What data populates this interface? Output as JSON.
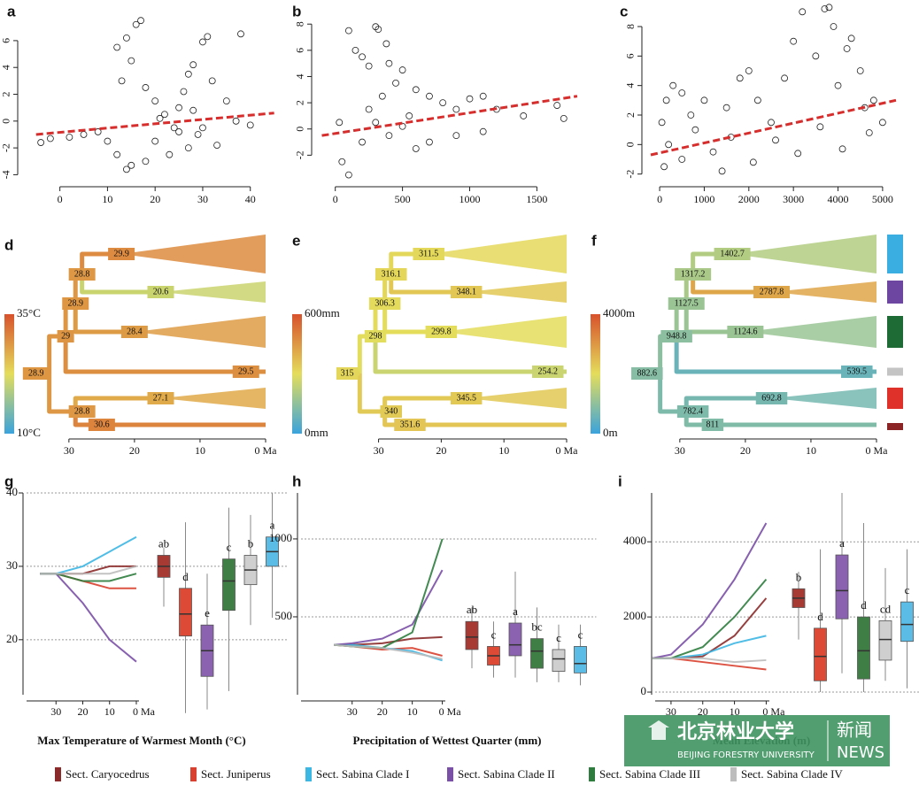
{
  "chart_data": [
    {
      "type": "scatter",
      "panel": "a",
      "xlim": [
        -7,
        46
      ],
      "ylim": [
        -4.5,
        8.7
      ],
      "xticks": [
        0,
        10,
        20,
        30,
        40
      ],
      "yticks": [
        -4,
        -2,
        0,
        2,
        4,
        6
      ],
      "x": [
        12,
        14,
        16,
        17,
        15,
        13,
        18,
        20,
        22,
        24,
        25,
        26,
        27,
        28,
        30,
        31,
        32,
        29,
        27,
        23,
        20,
        18,
        15,
        14,
        12,
        10,
        8,
        5,
        2,
        -4,
        -2,
        35,
        37,
        40,
        38,
        33,
        25,
        21,
        28,
        30
      ],
      "y": [
        5.5,
        6.2,
        7.2,
        7.5,
        4.5,
        3.0,
        2.5,
        1.5,
        0.5,
        -0.5,
        1.0,
        2.2,
        3.5,
        4.2,
        5.9,
        6.3,
        3.0,
        -1,
        -2,
        -2.5,
        -1.5,
        -3.0,
        -3.3,
        -3.6,
        -2.5,
        -1.5,
        -0.8,
        -1,
        -1.2,
        -1.6,
        -1.3,
        1.5,
        0,
        -0.3,
        6.5,
        -1.8,
        -0.8,
        0.2,
        0.8,
        -0.5
      ],
      "trend": {
        "x": [
          -5,
          45
        ],
        "y": [
          -1,
          0.6
        ],
        "color": "#d62d2d"
      }
    },
    {
      "type": "scatter",
      "panel": "b",
      "xlim": [
        -110,
        1820
      ],
      "ylim": [
        -4,
        9.5
      ],
      "xticks": [
        0,
        500,
        1000,
        1500
      ],
      "yticks": [
        -2,
        0,
        2,
        4,
        6,
        8
      ],
      "x": [
        100,
        300,
        320,
        200,
        250,
        150,
        400,
        380,
        500,
        450,
        600,
        700,
        800,
        900,
        1000,
        1100,
        1200,
        1400,
        1650,
        1700,
        50,
        100,
        200,
        300,
        400,
        500,
        600,
        700,
        900,
        1100,
        30,
        250,
        350,
        550
      ],
      "y": [
        7.5,
        7.8,
        7.6,
        5.5,
        4.8,
        6.0,
        5.0,
        6.5,
        4.5,
        3.5,
        3.0,
        2.5,
        2.0,
        1.5,
        2.3,
        2.5,
        1.5,
        1.0,
        1.8,
        0.8,
        -2.5,
        -3.5,
        -1.0,
        0.5,
        -0.5,
        0.2,
        -1.5,
        -1.0,
        -0.5,
        -0.2,
        0.5,
        1.5,
        2.5,
        1.0
      ],
      "trend": {
        "x": [
          -100,
          1800
        ],
        "y": [
          -0.5,
          2.5
        ],
        "color": "#d62d2d"
      }
    },
    {
      "type": "scatter",
      "panel": "c",
      "xlim": [
        -200,
        5300
      ],
      "ylim": [
        -2.5,
        9.5
      ],
      "xticks": [
        0,
        1000,
        2000,
        3000,
        4000,
        5000
      ],
      "yticks": [
        -2,
        0,
        2,
        4,
        6,
        8
      ],
      "x": [
        300,
        500,
        1000,
        1500,
        1800,
        2000,
        2200,
        2500,
        2800,
        3000,
        3200,
        3500,
        3700,
        3800,
        3900,
        4000,
        4200,
        4300,
        4500,
        4600,
        4800,
        5000,
        100,
        200,
        500,
        800,
        1200,
        1600,
        2100,
        2600,
        3100,
        3600,
        4100,
        4700,
        50,
        150,
        700,
        1400
      ],
      "y": [
        4.0,
        3.5,
        3.0,
        2.5,
        4.5,
        5.0,
        3.0,
        1.5,
        4.5,
        7.0,
        9.0,
        6.0,
        9.2,
        9.3,
        8.0,
        4.0,
        6.5,
        7.2,
        5.0,
        2.5,
        3.0,
        1.5,
        -1.5,
        0,
        -1.0,
        1.0,
        -0.5,
        0.5,
        -1.2,
        0.3,
        -0.6,
        1.2,
        -0.3,
        0.8,
        1.5,
        3,
        2,
        -1.8
      ],
      "trend": {
        "x": [
          -200,
          5300
        ],
        "y": [
          -0.7,
          3.0
        ],
        "color": "#d62d2d"
      }
    },
    {
      "type": "tree",
      "panel": "d",
      "xlim": [
        37,
        0
      ],
      "xticks": [
        30,
        20,
        10,
        {
          "value": 0,
          "label": "0 Ma"
        }
      ],
      "clim": [
        10,
        35
      ],
      "cticks": [
        {
          "value": 10,
          "label": "10°C"
        },
        {
          "value": 35,
          "label": "35°C"
        }
      ],
      "node_values": [
        29.9,
        28.8,
        20.6,
        28.9,
        28.4,
        29.0,
        29.5,
        28.9,
        27.1,
        28.8,
        30.6
      ]
    },
    {
      "type": "tree",
      "panel": "e",
      "xlim": [
        37,
        0
      ],
      "xticks": [
        30,
        20,
        10,
        {
          "value": 0,
          "label": "0 Ma"
        }
      ],
      "clim": [
        0,
        600
      ],
      "cticks": [
        {
          "value": 0,
          "label": "0mm"
        },
        {
          "value": 600,
          "label": "600mm"
        }
      ],
      "node_values": [
        311.5,
        316.1,
        348.1,
        306.3,
        299.8,
        298.0,
        254.2,
        315.0,
        345.5,
        340.0,
        351.6
      ]
    },
    {
      "type": "tree",
      "panel": "f",
      "xlim": [
        37,
        0
      ],
      "xticks": [
        30,
        20,
        10,
        {
          "value": 0,
          "label": "0 Ma"
        }
      ],
      "clim": [
        0,
        4000
      ],
      "cticks": [
        {
          "value": 0,
          "label": "0m"
        },
        {
          "value": 4000,
          "label": "4000m"
        }
      ],
      "node_values": [
        1402.7,
        1317.2,
        2787.8,
        1127.5,
        1124.6,
        948.8,
        539.5,
        882.6,
        692.8,
        782.4,
        811
      ],
      "clade_colors": [
        "#3aaee0",
        "#6c46a0",
        "#1f6b35",
        "#c4c4c4",
        "#e0302a",
        "#8b2525"
      ]
    },
    {
      "type": "box",
      "panel": "g",
      "title": "Max Temperature of Warmest Month (°C)",
      "xlim": [
        41,
        -1
      ],
      "xticks": [
        30,
        20,
        10,
        {
          "value": 0,
          "label": "0 Ma"
        }
      ],
      "ylim": [
        12.5,
        40
      ],
      "yticks": [
        20,
        30,
        40
      ],
      "x": [
        36,
        30,
        20,
        10,
        0
      ],
      "series": [
        {
          "color": "#8b2a2a",
          "values": [
            29,
            29,
            29,
            30,
            30
          ]
        },
        {
          "color": "#d9402f",
          "values": [
            29,
            29,
            28,
            27,
            27
          ]
        },
        {
          "color": "#3cb6e3",
          "values": [
            29,
            29,
            30,
            32,
            34
          ]
        },
        {
          "color": "#7a4fa6",
          "values": [
            29,
            29,
            25,
            20,
            17
          ]
        },
        {
          "color": "#2e7d3e",
          "values": [
            29,
            29,
            28,
            28,
            29
          ]
        },
        {
          "color": "#bdbdbd",
          "values": [
            29,
            29,
            29,
            29,
            30
          ]
        }
      ],
      "boxes": [
        {
          "label": "ab",
          "color": "#a83a34",
          "min": 24.5,
          "q1": 28.5,
          "median": 30,
          "q3": 31.5,
          "max": 32.5
        },
        {
          "label": "d",
          "color": "#dd4a35",
          "min": 10,
          "q1": 20.5,
          "median": 23.5,
          "q3": 27,
          "max": 36
        },
        {
          "label": "e",
          "color": "#8a62b0",
          "min": 10.5,
          "q1": 15,
          "median": 18.5,
          "q3": 22,
          "max": 29
        },
        {
          "label": "c",
          "color": "#3f7f45",
          "min": 13,
          "q1": 24,
          "median": 28,
          "q3": 31,
          "max": 38
        },
        {
          "label": "b",
          "color": "#cfcfcf",
          "min": 22,
          "q1": 27.5,
          "median": 29.5,
          "q3": 31.5,
          "max": 37
        },
        {
          "label": "a",
          "color": "#5bbce6",
          "min": 23,
          "q1": 30,
          "median": 32,
          "q3": 34,
          "max": 40
        }
      ]
    },
    {
      "type": "box",
      "panel": "h",
      "title": "Precipitation of Wettest Quarter (mm)",
      "xlim": [
        47,
        -1
      ],
      "xticks": [
        30,
        20,
        10,
        {
          "value": 0,
          "label": "0 Ma"
        }
      ],
      "ylim": [
        0,
        1295
      ],
      "yticks": [
        500,
        1000
      ],
      "x": [
        36,
        30,
        20,
        10,
        0
      ],
      "series": [
        {
          "color": "#8b2a2a",
          "values": [
            320,
            320,
            330,
            360,
            370
          ]
        },
        {
          "color": "#d9402f",
          "values": [
            320,
            310,
            290,
            300,
            250
          ]
        },
        {
          "color": "#3cb6e3",
          "values": [
            320,
            320,
            300,
            280,
            220
          ]
        },
        {
          "color": "#7a4fa6",
          "values": [
            320,
            330,
            360,
            450,
            800
          ]
        },
        {
          "color": "#2e7d3e",
          "values": [
            320,
            310,
            300,
            400,
            1000
          ]
        },
        {
          "color": "#bdbdbd",
          "values": [
            320,
            310,
            300,
            270,
            230
          ]
        }
      ],
      "boxes": [
        {
          "label": "ab",
          "color": "#a83a34",
          "min": 170,
          "q1": 290,
          "median": 370,
          "q3": 470,
          "max": 560
        },
        {
          "label": "c",
          "color": "#dd4a35",
          "min": 110,
          "q1": 190,
          "median": 250,
          "q3": 310,
          "max": 470
        },
        {
          "label": "a",
          "color": "#8a62b0",
          "min": 110,
          "q1": 250,
          "median": 320,
          "q3": 460,
          "max": 790
        },
        {
          "label": "bc",
          "color": "#3f7f45",
          "min": 80,
          "q1": 170,
          "median": 280,
          "q3": 360,
          "max": 560
        },
        {
          "label": "c",
          "color": "#cfcfcf",
          "min": 80,
          "q1": 150,
          "median": 230,
          "q3": 290,
          "max": 450
        },
        {
          "label": "c",
          "color": "#5bbce6",
          "min": 60,
          "q1": 140,
          "median": 200,
          "q3": 310,
          "max": 450
        }
      ]
    },
    {
      "type": "box",
      "panel": "i",
      "title": "Mean Elevation (m)",
      "xlim": [
        35,
        -1
      ],
      "xticks": [
        30,
        20,
        10,
        {
          "value": 0,
          "label": "0 Ma"
        }
      ],
      "ylim": [
        -70,
        5300
      ],
      "yticks": [
        0,
        2000,
        4000
      ],
      "x": [
        36,
        30,
        20,
        10,
        0
      ],
      "series": [
        {
          "color": "#8b2a2a",
          "values": [
            900,
            900,
            950,
            1500,
            2500
          ]
        },
        {
          "color": "#d9402f",
          "values": [
            900,
            900,
            800,
            700,
            600
          ]
        },
        {
          "color": "#3cb6e3",
          "values": [
            900,
            900,
            1000,
            1300,
            1500
          ]
        },
        {
          "color": "#7a4fa6",
          "values": [
            900,
            1000,
            1800,
            3000,
            4500
          ]
        },
        {
          "color": "#2e7d3e",
          "values": [
            900,
            900,
            1200,
            2000,
            3000
          ]
        },
        {
          "color": "#bdbdbd",
          "values": [
            900,
            900,
            900,
            800,
            850
          ]
        }
      ],
      "boxes": [
        {
          "label": "b",
          "color": "#a83a34",
          "min": 1400,
          "q1": 2250,
          "median": 2500,
          "q3": 2750,
          "max": 3200
        },
        {
          "label": "d",
          "color": "#dd4a35",
          "min": 0,
          "q1": 300,
          "median": 950,
          "q3": 1700,
          "max": 3800
        },
        {
          "label": "a",
          "color": "#8a62b0",
          "min": 500,
          "q1": 1950,
          "median": 2700,
          "q3": 3650,
          "max": 5300
        },
        {
          "label": "d",
          "color": "#3f7f45",
          "min": 0,
          "q1": 350,
          "median": 1100,
          "q3": 2000,
          "max": 4500
        },
        {
          "label": "cd",
          "color": "#cfcfcf",
          "min": 300,
          "q1": 850,
          "median": 1400,
          "q3": 1900,
          "max": 3300
        },
        {
          "label": "c",
          "color": "#5bbce6",
          "min": 100,
          "q1": 1350,
          "median": 1800,
          "q3": 2400,
          "max": 3800
        }
      ]
    }
  ],
  "legend": {
    "series": [
      {
        "name": "Sect. Caryocedrus",
        "color": "#8b2a2a"
      },
      {
        "name": "Sect. Juniperus",
        "color": "#d9402f"
      },
      {
        "name": "Sect. Sabina Clade I",
        "color": "#3cb6e3"
      },
      {
        "name": "Sect. Sabina Clade II",
        "color": "#7a4fa6"
      },
      {
        "name": "Sect. Sabina Clade III",
        "color": "#2e7d3e"
      },
      {
        "name": "Sect. Sabina Clade IV",
        "color": "#bdbdbd"
      }
    ]
  },
  "watermark": {
    "name_cn": "北京林业大学",
    "name_en": "BEIJING FORESTRY UNIVERSITY",
    "news_cn": "新闻",
    "news_en": "NEWS"
  }
}
